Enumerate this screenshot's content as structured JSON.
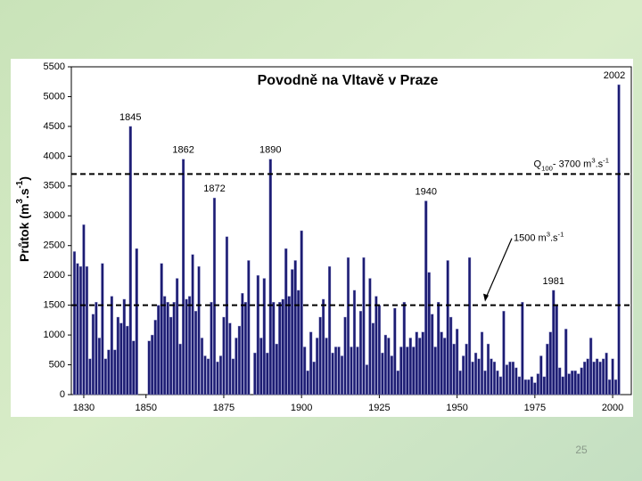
{
  "chart_data": {
    "type": "bar",
    "title": "Povodně na Vltavě v Praze",
    "y_label": [
      {
        "text": "Průtok (m"
      },
      {
        "text": "3",
        "shift": "super"
      },
      {
        "text": ".s"
      },
      {
        "text": "-1",
        "shift": "super"
      },
      {
        "text": ")"
      }
    ],
    "color": "#1c1c72",
    "xlim": [
      1826,
      2006
    ],
    "xticks": [
      1830,
      1850,
      1875,
      1900,
      1925,
      1950,
      1975,
      2000
    ],
    "ylim": [
      0,
      5500
    ],
    "yticks": [
      0,
      500,
      1000,
      1500,
      2000,
      2500,
      3000,
      3500,
      4000,
      4500,
      5000,
      5500
    ],
    "x": [
      1827,
      1828,
      1829,
      1830,
      1831,
      1832,
      1833,
      1834,
      1835,
      1836,
      1837,
      1838,
      1839,
      1840,
      1841,
      1842,
      1843,
      1844,
      1845,
      1846,
      1847,
      1851,
      1852,
      1853,
      1854,
      1855,
      1856,
      1857,
      1858,
      1859,
      1860,
      1861,
      1862,
      1863,
      1864,
      1865,
      1866,
      1867,
      1868,
      1869,
      1870,
      1871,
      1872,
      1873,
      1874,
      1875,
      1876,
      1877,
      1878,
      1879,
      1880,
      1881,
      1882,
      1883,
      1885,
      1886,
      1887,
      1888,
      1889,
      1890,
      1891,
      1892,
      1893,
      1894,
      1895,
      1896,
      1897,
      1898,
      1899,
      1900,
      1901,
      1902,
      1903,
      1904,
      1905,
      1906,
      1907,
      1908,
      1909,
      1910,
      1911,
      1912,
      1913,
      1914,
      1915,
      1916,
      1917,
      1918,
      1919,
      1920,
      1921,
      1922,
      1923,
      1924,
      1925,
      1926,
      1927,
      1928,
      1929,
      1930,
      1931,
      1932,
      1933,
      1934,
      1935,
      1936,
      1937,
      1938,
      1939,
      1940,
      1941,
      1942,
      1943,
      1944,
      1945,
      1946,
      1947,
      1948,
      1949,
      1950,
      1951,
      1952,
      1953,
      1954,
      1955,
      1956,
      1957,
      1958,
      1959,
      1960,
      1961,
      1962,
      1963,
      1964,
      1965,
      1966,
      1967,
      1968,
      1969,
      1970,
      1971,
      1972,
      1973,
      1974,
      1975,
      1976,
      1977,
      1978,
      1979,
      1980,
      1981,
      1982,
      1983,
      1984,
      1985,
      1986,
      1987,
      1988,
      1989,
      1990,
      1991,
      1992,
      1993,
      1994,
      1995,
      1996,
      1997,
      1998,
      1999,
      2000,
      2001,
      2002
    ],
    "values": [
      2400,
      2200,
      2150,
      2850,
      2150,
      600,
      1350,
      1550,
      950,
      2200,
      600,
      750,
      1650,
      750,
      1300,
      1200,
      1600,
      1150,
      4500,
      900,
      2450,
      900,
      1000,
      1250,
      1500,
      2200,
      1650,
      1550,
      1300,
      1550,
      1950,
      850,
      3950,
      1600,
      1650,
      2350,
      1400,
      2150,
      950,
      650,
      600,
      1550,
      3300,
      550,
      650,
      1300,
      2650,
      1200,
      600,
      950,
      1150,
      1700,
      1550,
      2250,
      700,
      2000,
      950,
      1950,
      700,
      3950,
      1550,
      850,
      1550,
      1600,
      2450,
      1650,
      2100,
      2250,
      1750,
      2750,
      800,
      400,
      1050,
      550,
      950,
      1300,
      1600,
      950,
      2150,
      700,
      800,
      800,
      650,
      1300,
      2300,
      800,
      1750,
      800,
      1400,
      2300,
      500,
      1950,
      1200,
      1650,
      1500,
      700,
      1000,
      950,
      650,
      1450,
      400,
      800,
      1550,
      800,
      950,
      800,
      1050,
      950,
      1050,
      3250,
      2050,
      1350,
      800,
      1550,
      1050,
      950,
      2250,
      1300,
      850,
      1100,
      400,
      650,
      850,
      2300,
      550,
      700,
      600,
      1050,
      400,
      850,
      600,
      550,
      400,
      300,
      1400,
      500,
      550,
      550,
      450,
      300,
      1550,
      250,
      250,
      300,
      200,
      350,
      650,
      300,
      850,
      1050,
      1750,
      1500,
      450,
      300,
      1100,
      350,
      400,
      400,
      350,
      450,
      550,
      600,
      950,
      550,
      600,
      550,
      600,
      700,
      250,
      600,
      250,
      5200
    ],
    "annotations": [
      {
        "label": "1845",
        "x": 1845
      },
      {
        "label": "1862",
        "x": 1862
      },
      {
        "label": "1872",
        "x": 1872
      },
      {
        "label": "1890",
        "x": 1890
      },
      {
        "label": "1940",
        "x": 1940
      },
      {
        "label": "1981",
        "x": 1981
      },
      {
        "label": "2002",
        "x": 2002
      }
    ],
    "reference_lines": [
      {
        "value": 3700,
        "label": [
          {
            "text": "Q"
          },
          {
            "text": "100",
            "shift": "sub"
          },
          {
            "text": "- 3700 m"
          },
          {
            "text": "3",
            "shift": "super"
          },
          {
            "text": ".s"
          },
          {
            "text": "-1",
            "shift": "super"
          }
        ]
      },
      {
        "value": 1500,
        "label": [
          {
            "text": "1500 m"
          },
          {
            "text": "3",
            "shift": "super"
          },
          {
            "text": ".s"
          },
          {
            "text": "-1",
            "shift": "super"
          }
        ]
      }
    ]
  },
  "slide": {
    "page_number": "25"
  }
}
